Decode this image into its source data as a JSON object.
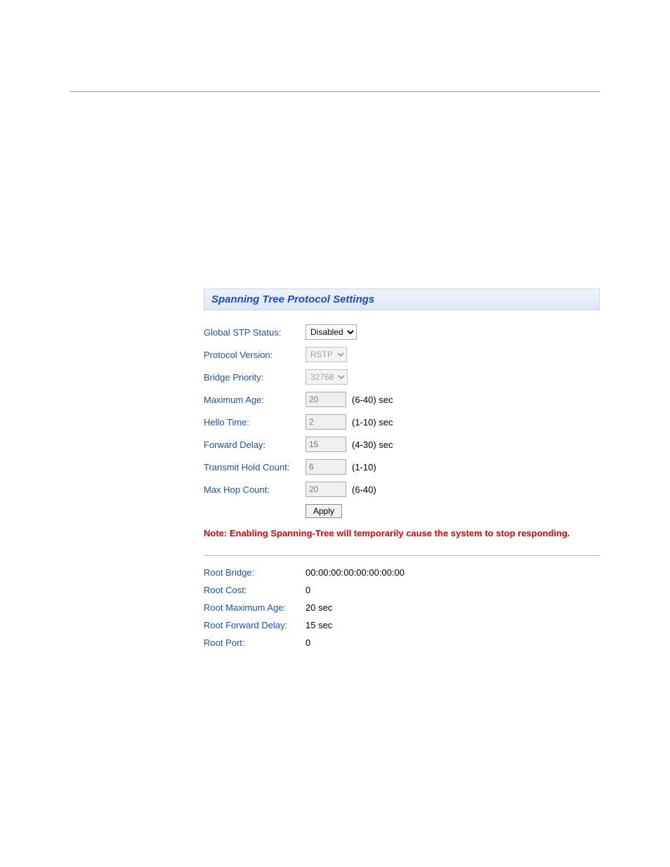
{
  "panel": {
    "title": "Spanning Tree Protocol Settings",
    "title_color": "#1a4fc2",
    "title_bg_top": "#eef3fb",
    "title_bg_bottom": "#dde7f6"
  },
  "settings": {
    "global_stp_status": {
      "label": "Global STP Status:",
      "value": "Disabled",
      "disabled": false
    },
    "protocol_version": {
      "label": "Protocol Version:",
      "value": "RSTP",
      "disabled": true
    },
    "bridge_priority": {
      "label": "Bridge Priority:",
      "value": "32768",
      "disabled": true
    },
    "maximum_age": {
      "label": "Maximum Age:",
      "value": "20",
      "range": "(6-40) sec",
      "disabled": true
    },
    "hello_time": {
      "label": "Hello Time:",
      "value": "2",
      "range": "(1-10) sec",
      "disabled": true
    },
    "forward_delay": {
      "label": "Forward Delay:",
      "value": "15",
      "range": "(4-30) sec",
      "disabled": true
    },
    "transmit_hold_count": {
      "label": "Transmit Hold Count:",
      "value": "6",
      "range": "(1-10)",
      "disabled": true
    },
    "max_hop_count": {
      "label": "Max Hop Count:",
      "value": "20",
      "range": "(6-40)",
      "disabled": true
    },
    "apply_label": "Apply"
  },
  "warning": "Note: Enabling Spanning-Tree will temporarily cause the system to stop responding.",
  "root_info": {
    "root_bridge": {
      "label": "Root Bridge:",
      "value": "00:00:00:00:00:00:00:00"
    },
    "root_cost": {
      "label": "Root Cost:",
      "value": "0"
    },
    "root_maximum_age": {
      "label": "Root Maximum Age:",
      "value": "20 sec"
    },
    "root_forward_delay": {
      "label": "Root Forward Delay:",
      "value": "15 sec"
    },
    "root_port": {
      "label": "Root Port:",
      "value": "0"
    }
  },
  "colors": {
    "label_color": "#1a4fc2",
    "warning_color": "#e60000",
    "rule_color": "#b5b5b5",
    "disabled_bg": "#efefef",
    "disabled_fg": "#7a7a7a"
  }
}
